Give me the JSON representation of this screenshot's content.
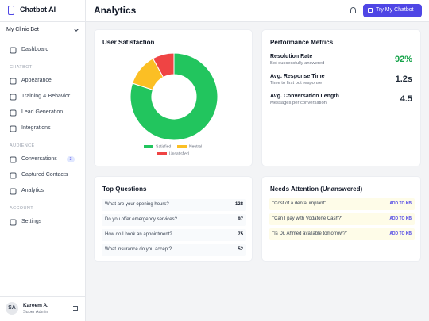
{
  "sidebar": {
    "brand": "Chatbot AI",
    "bot_select": "My Clinic Bot",
    "dashboard": "Dashboard",
    "groups": [
      {
        "heading": "CHATBOT",
        "items": [
          "Appearance",
          "Training & Behavior",
          "Lead Generation",
          "Integrations"
        ]
      },
      {
        "heading": "AUDIENCE",
        "items": [
          "Conversations",
          "Captured Contacts",
          "Analytics"
        ]
      },
      {
        "heading": "ACCOUNT",
        "items": [
          "Settings"
        ]
      }
    ],
    "conversations_badge": 3
  },
  "user": {
    "initials": "SA",
    "name": "Kareem A.",
    "role": "Super Admin"
  },
  "header": {
    "title": "Analytics",
    "button": "Try My Chatbot"
  },
  "chart_data": {
    "type": "pie",
    "title": "User Satisfaction",
    "donut": true,
    "categories": [
      "Satisfied",
      "Neutral",
      "Unsatisfied"
    ],
    "values": [
      80,
      12,
      8
    ],
    "colors": [
      "#22c55e",
      "#fbbf24",
      "#ef4444"
    ]
  },
  "metrics": {
    "title": "Performance Metrics",
    "items": [
      {
        "label": "Resolution Rate",
        "sub": "Bot successfully answered",
        "value": "92%",
        "color": "#16a34a"
      },
      {
        "label": "Avg. Response Time",
        "sub": "Time to first bot response",
        "value": "1.2s",
        "color": "#1f2937"
      },
      {
        "label": "Avg. Conversation Length",
        "sub": "Messages per conversation",
        "value": "4.5",
        "color": "#1f2937"
      }
    ]
  },
  "top_questions": {
    "title": "Top Questions",
    "rows": [
      [
        "What are your opening hours?",
        128
      ],
      [
        "Do you offer emergency services?",
        97
      ],
      [
        "How do I book an appointment?",
        75
      ],
      [
        "What insurance do you accept?",
        52
      ]
    ]
  },
  "needs_attention": {
    "title": "Needs Attention (Unanswered)",
    "action": "ADD TO KB",
    "items": [
      "\"Cost of a dental implant\"",
      "\"Can I pay with Vodafone Cash?\"",
      "\"Is Dr. Ahmed available tomorrow?\""
    ]
  }
}
